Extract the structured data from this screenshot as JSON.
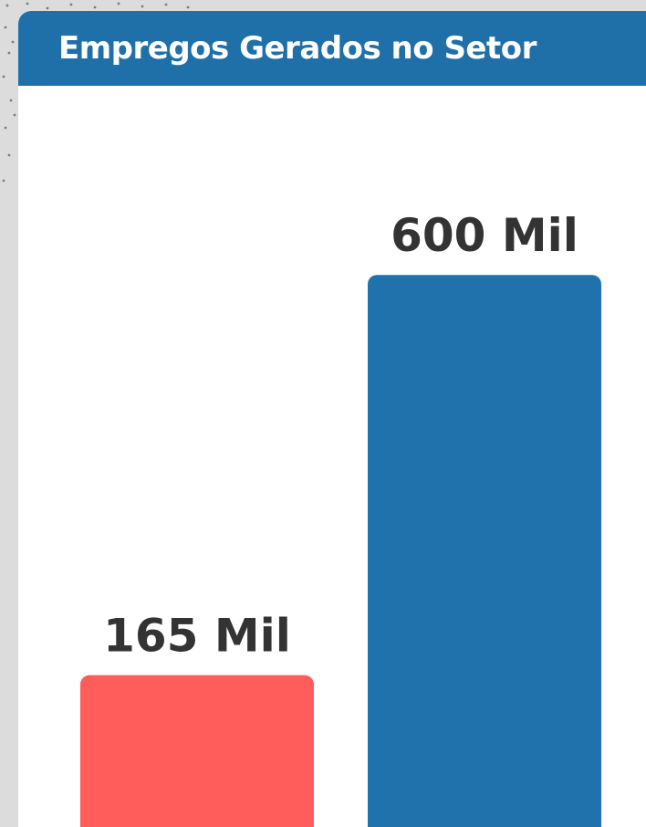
{
  "chart_data": {
    "type": "bar",
    "title": "Empregos Gerados no Setor",
    "categories": [
      "",
      ""
    ],
    "values": [
      165,
      600
    ],
    "value_labels": [
      "165 Mil",
      "600 Mil"
    ],
    "colors": [
      "#ff5c5c",
      "#1f72ab"
    ],
    "ylim": [
      0,
      750
    ],
    "grid": false
  },
  "colors": {
    "header": "#1f6fa8",
    "background": "#dcdcdc",
    "card": "#ffffff",
    "label_text": "#333333"
  }
}
